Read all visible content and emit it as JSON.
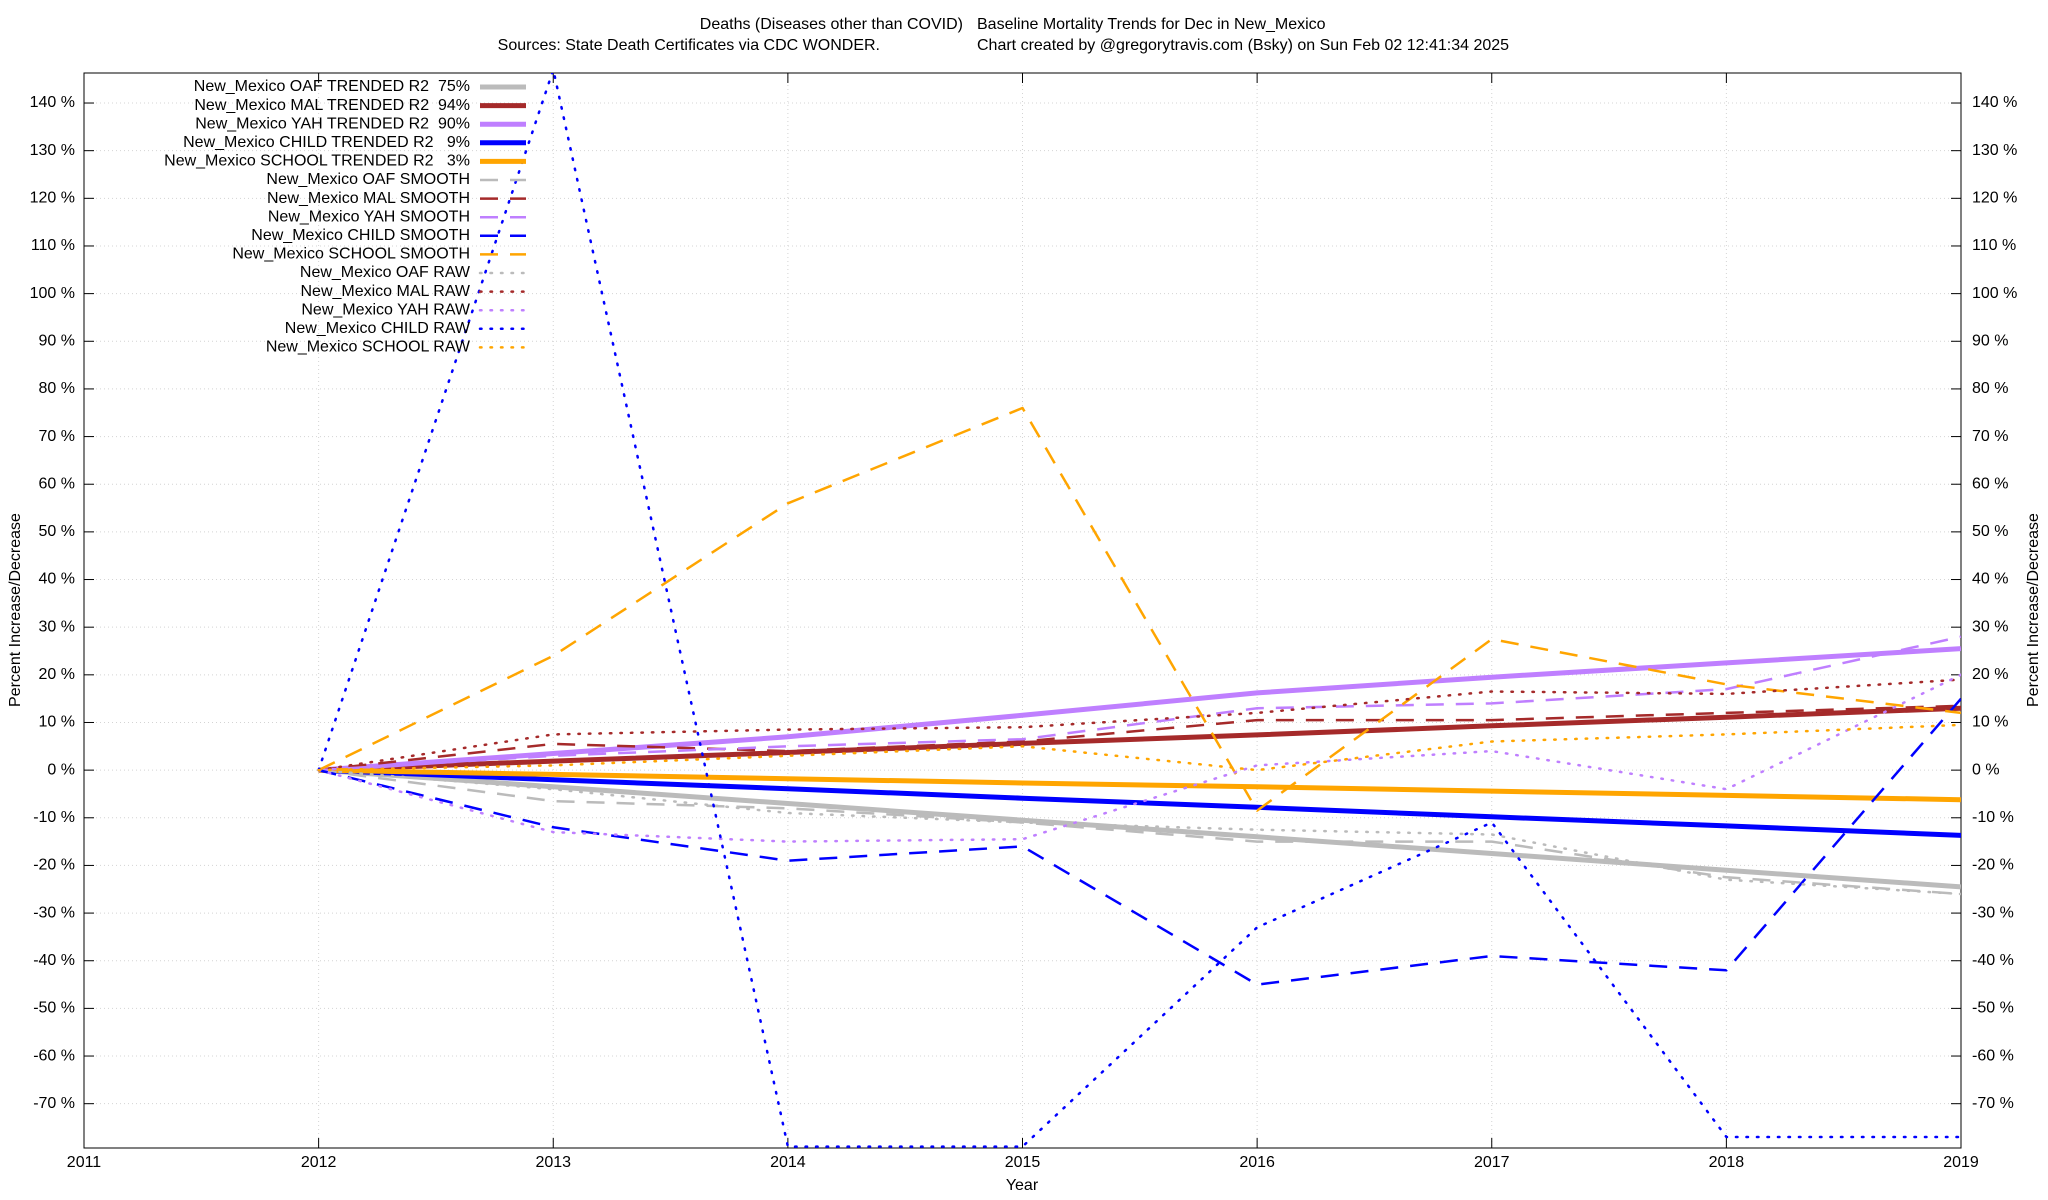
{
  "chart_data": {
    "type": "line",
    "title": [
      "Deaths (Diseases other than COVID)",
      "Baseline Mortality Trends for Dec in New_Mexico"
    ],
    "subtitle": [
      "Sources: State Death Certificates via CDC WONDER.",
      "Chart created by @gregorytravis.com (Bsky) on Sun Feb 02 12:41:34 2025"
    ],
    "xlabel": "Year",
    "ylabel": "Percent Increase/Decrease",
    "x": [
      2012,
      2013,
      2014,
      2015,
      2016,
      2017,
      2018,
      2019
    ],
    "xlim": [
      2011,
      2019
    ],
    "xticks": [
      2011,
      2012,
      2013,
      2014,
      2015,
      2016,
      2017,
      2018,
      2019
    ],
    "ylim": [
      -79.3,
      146.3
    ],
    "yticks": [
      {
        "value": -70,
        "label": "-70 %"
      },
      {
        "value": -60,
        "label": "-60 %"
      },
      {
        "value": -50,
        "label": "-50 %"
      },
      {
        "value": -40,
        "label": "-40 %"
      },
      {
        "value": -30,
        "label": "-30 %"
      },
      {
        "value": -20,
        "label": "-20 %"
      },
      {
        "value": -10,
        "label": "-10 %"
      },
      {
        "value": 0,
        "label": "0 %"
      },
      {
        "value": 10,
        "label": "10 %"
      },
      {
        "value": 20,
        "label": "20 %"
      },
      {
        "value": 30,
        "label": "30 %"
      },
      {
        "value": 40,
        "label": "40 %"
      },
      {
        "value": 50,
        "label": "50 %"
      },
      {
        "value": 60,
        "label": "60 %"
      },
      {
        "value": 70,
        "label": "70 %"
      },
      {
        "value": 80,
        "label": "80 %"
      },
      {
        "value": 90,
        "label": "90 %"
      },
      {
        "value": 100,
        "label": "100 %"
      },
      {
        "value": 110,
        "label": "110 %"
      },
      {
        "value": 120,
        "label": "120 %"
      },
      {
        "value": 130,
        "label": "130 %"
      },
      {
        "value": 140,
        "label": "140 %"
      }
    ],
    "grid": true,
    "legend": "top-left",
    "series": [
      {
        "name": "New_Mexico OAF TRENDED R2  75%",
        "color": "#bbbbbb",
        "style": "solid",
        "values": [
          0,
          -3.5,
          -7,
          -10.5,
          -14,
          -17.5,
          -21,
          -24.5
        ]
      },
      {
        "name": "New_Mexico MAL TRENDED R2  94%",
        "color": "#a52a2a",
        "style": "solid",
        "values": [
          0,
          1.9,
          3.7,
          5.6,
          7.4,
          9.3,
          11.1,
          13
        ]
      },
      {
        "name": "New_Mexico YAH TRENDED R2  90%",
        "color": "#bf7fff",
        "style": "solid",
        "values": [
          0,
          3.5,
          7,
          11.5,
          16.2,
          19.5,
          22.5,
          25.5
        ]
      },
      {
        "name": "New_Mexico CHILD TRENDED R2   9%",
        "color": "#0000ff",
        "style": "solid",
        "values": [
          0,
          -2,
          -3.9,
          -5.9,
          -7.8,
          -9.8,
          -11.7,
          -13.7
        ]
      },
      {
        "name": "New_Mexico SCHOOL TRENDED R2   3%",
        "color": "#ffa500",
        "style": "solid",
        "values": [
          0,
          -0.9,
          -1.8,
          -2.7,
          -3.5,
          -4.4,
          -5.3,
          -6.2
        ]
      },
      {
        "name": "New_Mexico OAF SMOOTH",
        "color": "#bbbbbb",
        "style": "dashed",
        "values": [
          0,
          -6.5,
          -8,
          -11,
          -15,
          -15,
          -22.5,
          -26
        ]
      },
      {
        "name": "New_Mexico MAL SMOOTH",
        "color": "#a52a2a",
        "style": "dashed",
        "values": [
          0,
          5.5,
          4,
          6,
          10.5,
          10.5,
          12,
          13.5
        ]
      },
      {
        "name": "New_Mexico YAH SMOOTH",
        "color": "#bf7fff",
        "style": "dashed",
        "values": [
          0,
          3,
          5,
          6.5,
          13,
          14,
          17,
          28
        ]
      },
      {
        "name": "New_Mexico CHILD SMOOTH",
        "color": "#0000ff",
        "style": "dashed",
        "values": [
          0,
          -12,
          -19,
          -16,
          -45,
          -39,
          -42,
          15
        ]
      },
      {
        "name": "New_Mexico SCHOOL SMOOTH",
        "color": "#ffa500",
        "style": "dashed",
        "values": [
          0,
          24,
          56,
          76,
          -8.5,
          27.5,
          18,
          12
        ]
      },
      {
        "name": "New_Mexico OAF RAW",
        "color": "#bbbbbb",
        "style": "dotted",
        "values": [
          0,
          -4,
          -9,
          -11,
          -12.5,
          -13.5,
          -23,
          -26
        ]
      },
      {
        "name": "New_Mexico MAL RAW",
        "color": "#a52a2a",
        "style": "dotted",
        "values": [
          0,
          7.5,
          8.5,
          9,
          12,
          16.5,
          16,
          19
        ]
      },
      {
        "name": "New_Mexico YAH RAW",
        "color": "#bf7fff",
        "style": "dotted",
        "values": [
          0,
          -13,
          -15,
          -14.5,
          1,
          4,
          -4,
          20
        ]
      },
      {
        "name": "New_Mexico CHILD RAW",
        "color": "#0000ff",
        "style": "dotted",
        "values": [
          0,
          147,
          -79,
          -79,
          -33,
          -11,
          -77,
          -77
        ]
      },
      {
        "name": "New_Mexico SCHOOL RAW",
        "color": "#ffa500",
        "style": "dotted",
        "values": [
          0,
          1,
          3,
          5,
          0,
          6,
          7.5,
          9.5
        ]
      }
    ]
  }
}
